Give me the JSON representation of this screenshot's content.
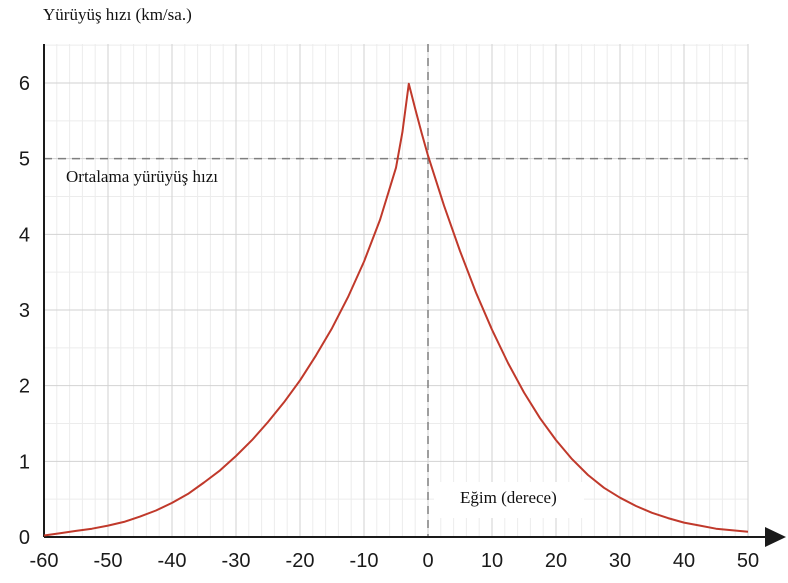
{
  "chart_data": {
    "type": "line",
    "title": "",
    "ylabel": "Yürüyüş hızı (km/sa.)",
    "xlabel": "Eğim (derece)",
    "xlim": [
      -60,
      50
    ],
    "ylim": [
      0,
      6
    ],
    "x_ticks": [
      -60,
      -50,
      -40,
      -30,
      -20,
      -10,
      0,
      10,
      20,
      30,
      40,
      50
    ],
    "y_ticks": [
      0,
      1,
      2,
      3,
      4,
      5,
      6
    ],
    "x_tick_labels": [
      "-60",
      "-50",
      "-40",
      "-30",
      "-20",
      "-10",
      "0",
      "10",
      "20",
      "30",
      "40",
      "50"
    ],
    "y_tick_labels": [
      "0",
      "1",
      "2",
      "3",
      "4",
      "5",
      "6"
    ],
    "grid": true,
    "reference_lines": {
      "horizontal": {
        "y": 5,
        "style": "dashed",
        "label": "Ortalama yürüyüş hızı"
      },
      "vertical": {
        "x": 0,
        "style": "dashed"
      }
    },
    "series": [
      {
        "color": "#c0392b",
        "x": [
          -60,
          -57.5,
          -55,
          -52.5,
          -50,
          -47.5,
          -45,
          -42.5,
          -40,
          -37.5,
          -35,
          -32.5,
          -30,
          -27.5,
          -25,
          -22.5,
          -20,
          -17.5,
          -15,
          -12.5,
          -10,
          -7.5,
          -5,
          -4,
          -3,
          -2,
          -1,
          0,
          2.5,
          5,
          7.5,
          10,
          12.5,
          15,
          17.5,
          20,
          22.5,
          25,
          27.5,
          30,
          32.5,
          35,
          37.5,
          40,
          42.5,
          45,
          47.5,
          50
        ],
        "y": [
          0.02,
          0.05,
          0.08,
          0.11,
          0.15,
          0.2,
          0.27,
          0.35,
          0.45,
          0.57,
          0.72,
          0.88,
          1.07,
          1.28,
          1.52,
          1.78,
          2.07,
          2.4,
          2.76,
          3.17,
          3.64,
          4.19,
          4.88,
          5.35,
          5.99,
          5.66,
          5.34,
          5.04,
          4.38,
          3.78,
          3.23,
          2.74,
          2.3,
          1.91,
          1.57,
          1.28,
          1.03,
          0.82,
          0.65,
          0.52,
          0.41,
          0.32,
          0.25,
          0.19,
          0.15,
          0.11,
          0.09,
          0.07
        ]
      }
    ]
  },
  "colors": {
    "curve": "#c0392b",
    "axis": "#1a1a1a",
    "reference_line": "#7f7f7f",
    "major_grid": "#d2d2d2",
    "minor_grid": "#ececec",
    "background": "#ffffff"
  }
}
